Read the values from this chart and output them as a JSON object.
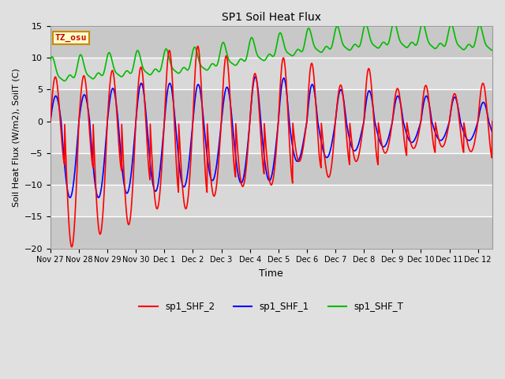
{
  "title": "SP1 Soil Heat Flux",
  "xlabel": "Time",
  "ylabel": "Soil Heat Flux (W/m2), SoilT (C)",
  "ylim": [
    -20,
    15
  ],
  "background_color": "#e8e8e8",
  "plot_bg_color": "#d8d8d8",
  "grid_color": "#c0c0c0",
  "tz_label": "TZ_osu",
  "tz_bg": "#ffffcc",
  "tz_border": "#cc8800",
  "line_colors": {
    "sp1_SHF_2": "#ff0000",
    "sp1_SHF_1": "#0000ff",
    "sp1_SHF_T": "#00bb00"
  },
  "tick_labels": [
    "Nov 27",
    "Nov 28",
    "Nov 29",
    "Nov 30",
    "Dec 1",
    "Dec 2",
    "Dec 3",
    "Dec 4",
    "Dec 5",
    "Dec 6",
    "Dec 7",
    "Dec 8",
    "Dec 9",
    "Dec 10",
    "Dec 11",
    "Dec 12"
  ]
}
